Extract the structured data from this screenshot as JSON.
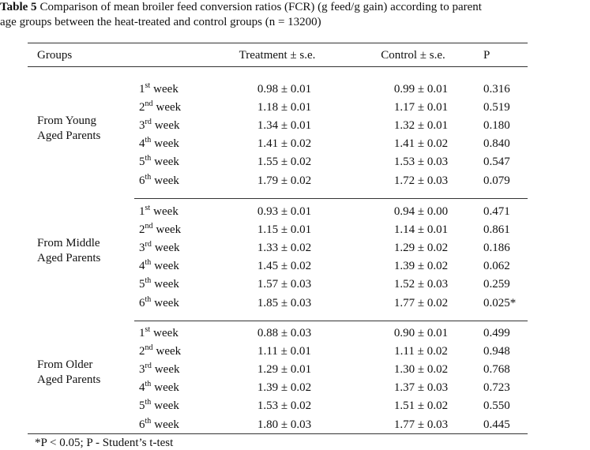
{
  "caption": {
    "label": "Table 5",
    "lines": [
      "Comparison of mean broiler feed conversion ratios (FCR) (g feed/g gain) according to parent",
      "age groups between the heat-treated and control groups (n = 13200)"
    ]
  },
  "table": {
    "header": [
      "Groups",
      "Treatment ± s.e.",
      "Control ± s.e.",
      "P"
    ],
    "groups": [
      {
        "name": [
          "From Young",
          "Aged Parents"
        ],
        "rows": [
          {
            "week": {
              "number": "1",
              "ordinal": "st",
              "unit": "week"
            },
            "treatment": "0.98 ± 0.01",
            "control": "0.99 ± 0.01",
            "p": "0.316"
          },
          {
            "week": {
              "number": "2",
              "ordinal": "nd",
              "unit": "week"
            },
            "treatment": "1.18 ± 0.01",
            "control": "1.17 ± 0.01",
            "p": "0.519"
          },
          {
            "week": {
              "number": "3",
              "ordinal": "rd",
              "unit": "week"
            },
            "treatment": "1.34 ± 0.01",
            "control": "1.32 ± 0.01",
            "p": "0.180"
          },
          {
            "week": {
              "number": "4",
              "ordinal": "th",
              "unit": "week"
            },
            "treatment": "1.41 ± 0.02",
            "control": "1.41 ± 0.02",
            "p": "0.840"
          },
          {
            "week": {
              "number": "5",
              "ordinal": "th",
              "unit": "week"
            },
            "treatment": "1.55 ± 0.02",
            "control": "1.53 ± 0.03",
            "p": "0.547"
          },
          {
            "week": {
              "number": "6",
              "ordinal": "th",
              "unit": "week"
            },
            "treatment": "1.79 ± 0.02",
            "control": "1.72 ± 0.03",
            "p": "0.079"
          }
        ]
      },
      {
        "name": [
          "From Middle",
          "Aged Parents"
        ],
        "rows": [
          {
            "week": {
              "number": "1",
              "ordinal": "st",
              "unit": "week"
            },
            "treatment": "0.93 ± 0.01",
            "control": "0.94 ± 0.00",
            "p": "0.471"
          },
          {
            "week": {
              "number": "2",
              "ordinal": "nd",
              "unit": "week"
            },
            "treatment": "1.15 ± 0.01",
            "control": "1.14 ± 0.01",
            "p": "0.861"
          },
          {
            "week": {
              "number": "3",
              "ordinal": "rd",
              "unit": "week"
            },
            "treatment": "1.33 ± 0.02",
            "control": "1.29 ± 0.02",
            "p": "0.186"
          },
          {
            "week": {
              "number": "4",
              "ordinal": "th",
              "unit": "week"
            },
            "treatment": "1.45 ± 0.02",
            "control": "1.39 ± 0.02",
            "p": "0.062"
          },
          {
            "week": {
              "number": "5",
              "ordinal": "th",
              "unit": "week"
            },
            "treatment": "1.57 ± 0.03",
            "control": "1.52 ± 0.03",
            "p": "0.259"
          },
          {
            "week": {
              "number": "6",
              "ordinal": "th",
              "unit": "week"
            },
            "treatment": "1.85 ± 0.03",
            "control": "1.77 ± 0.02",
            "p": "0.025*"
          }
        ]
      },
      {
        "name": [
          "From Older",
          "Aged Parents"
        ],
        "rows": [
          {
            "week": {
              "number": "1",
              "ordinal": "st",
              "unit": "week"
            },
            "treatment": "0.88 ± 0.03",
            "control": "0.90 ± 0.01",
            "p": "0.499"
          },
          {
            "week": {
              "number": "2",
              "ordinal": "nd",
              "unit": "week"
            },
            "treatment": "1.11 ± 0.01",
            "control": "1.11 ± 0.02",
            "p": "0.948"
          },
          {
            "week": {
              "number": "3",
              "ordinal": "rd",
              "unit": "week"
            },
            "treatment": "1.29 ± 0.01",
            "control": "1.30 ± 0.02",
            "p": "0.768"
          },
          {
            "week": {
              "number": "4",
              "ordinal": "th",
              "unit": "week"
            },
            "treatment": "1.39 ± 0.02",
            "control": "1.37 ± 0.03",
            "p": "0.723"
          },
          {
            "week": {
              "number": "5",
              "ordinal": "th",
              "unit": "week"
            },
            "treatment": "1.53 ± 0.02",
            "control": "1.51 ± 0.02",
            "p": "0.550"
          },
          {
            "week": {
              "number": "6",
              "ordinal": "th",
              "unit": "week"
            },
            "treatment": "1.80 ± 0.03",
            "control": "1.77 ± 0.03",
            "p": "0.445"
          }
        ]
      }
    ]
  },
  "footnote": "*P < 0.05; P - Student’s t-test"
}
